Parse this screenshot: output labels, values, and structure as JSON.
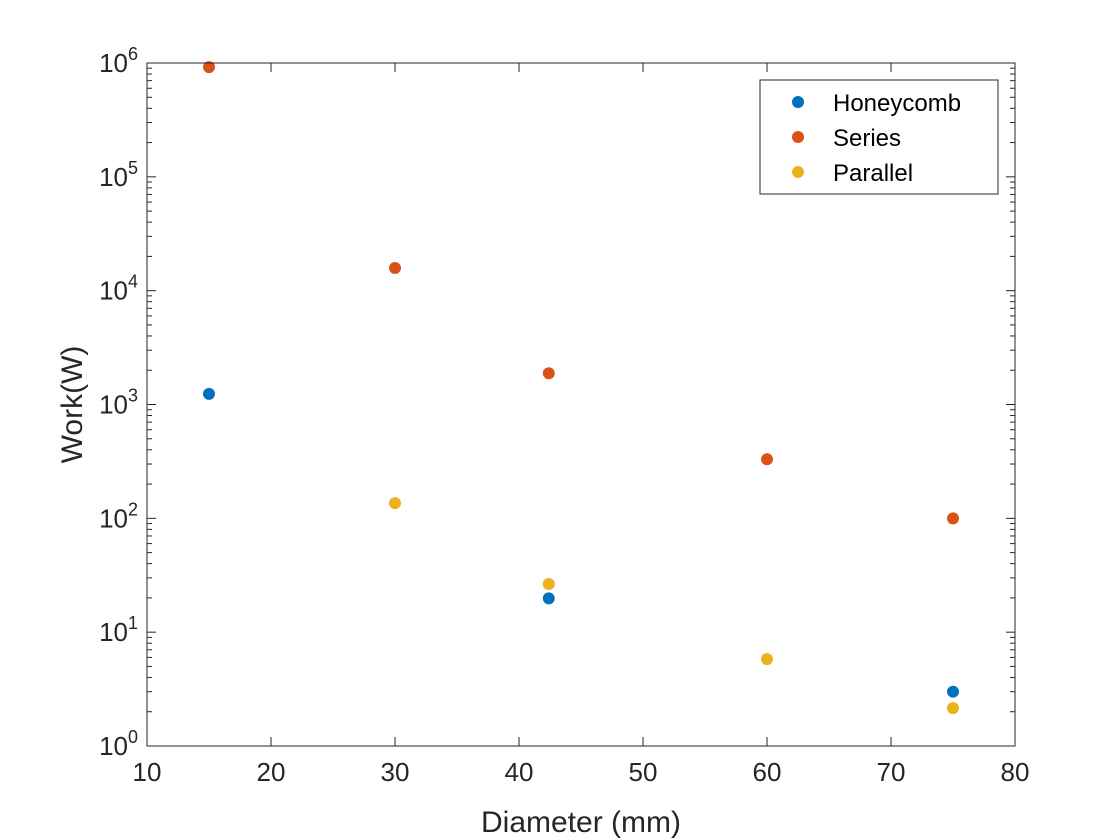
{
  "chart_data": {
    "type": "scatter",
    "title": "",
    "xlabel": "Diameter (mm)",
    "ylabel": "Work(W)",
    "xlim": [
      10,
      80
    ],
    "ylim": [
      1,
      1000000
    ],
    "yscale": "log",
    "xticks": [
      10,
      20,
      30,
      40,
      50,
      60,
      70,
      80
    ],
    "yticks": [
      {
        "base": "10",
        "exp": "0",
        "value": 1
      },
      {
        "base": "10",
        "exp": "1",
        "value": 10
      },
      {
        "base": "10",
        "exp": "2",
        "value": 100
      },
      {
        "base": "10",
        "exp": "3",
        "value": 1000
      },
      {
        "base": "10",
        "exp": "4",
        "value": 10000
      },
      {
        "base": "10",
        "exp": "5",
        "value": 100000
      },
      {
        "base": "10",
        "exp": "6",
        "value": 1000000
      }
    ],
    "grid": false,
    "legend_position": "top-right",
    "series": [
      {
        "name": "Honeycomb",
        "color": "#0072BD",
        "points": [
          [
            15,
            1240
          ],
          [
            42.4,
            19.8
          ],
          [
            75,
            3.0
          ]
        ]
      },
      {
        "name": "Series",
        "color": "#D95319",
        "points": [
          [
            15,
            920000
          ],
          [
            30,
            15800
          ],
          [
            42.4,
            1880
          ],
          [
            60,
            330
          ],
          [
            75,
            100
          ]
        ]
      },
      {
        "name": "Parallel",
        "color": "#EDB120",
        "points": [
          [
            30,
            136
          ],
          [
            42.4,
            26.5
          ],
          [
            60,
            5.8
          ],
          [
            75,
            2.15
          ]
        ]
      }
    ]
  }
}
